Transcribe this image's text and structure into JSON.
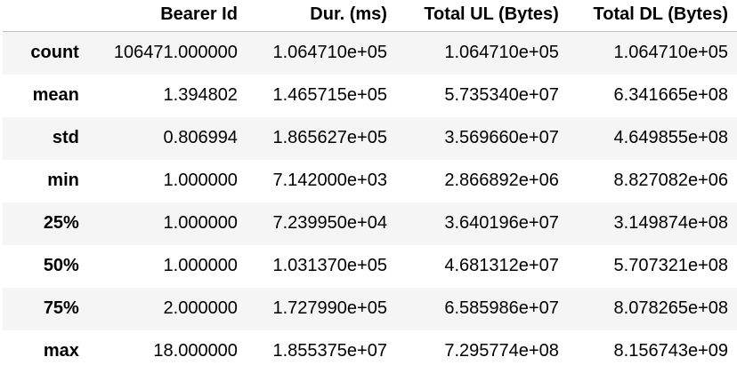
{
  "table": {
    "columns": [
      "Bearer Id",
      "Dur. (ms)",
      "Total UL (Bytes)",
      "Total DL (Bytes)"
    ],
    "rows": [
      {
        "index": "count",
        "values": [
          "106471.000000",
          "1.064710e+05",
          "1.064710e+05",
          "1.064710e+05"
        ]
      },
      {
        "index": "mean",
        "values": [
          "1.394802",
          "1.465715e+05",
          "5.735340e+07",
          "6.341665e+08"
        ]
      },
      {
        "index": "std",
        "values": [
          "0.806994",
          "1.865627e+05",
          "3.569660e+07",
          "4.649855e+08"
        ]
      },
      {
        "index": "min",
        "values": [
          "1.000000",
          "7.142000e+03",
          "2.866892e+06",
          "8.827082e+06"
        ]
      },
      {
        "index": "25%",
        "values": [
          "1.000000",
          "7.239950e+04",
          "3.640196e+07",
          "3.149874e+08"
        ]
      },
      {
        "index": "50%",
        "values": [
          "1.000000",
          "1.031370e+05",
          "4.681312e+07",
          "5.707321e+08"
        ]
      },
      {
        "index": "75%",
        "values": [
          "2.000000",
          "1.727990e+05",
          "6.585986e+07",
          "8.078265e+08"
        ]
      },
      {
        "index": "max",
        "values": [
          "18.000000",
          "1.855375e+07",
          "7.295774e+08",
          "8.156743e+09"
        ]
      }
    ]
  }
}
